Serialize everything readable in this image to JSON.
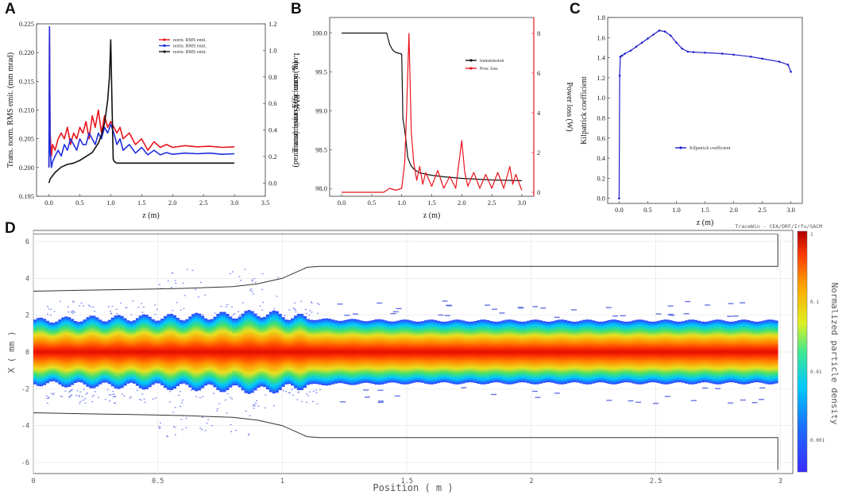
{
  "panels": {
    "A": "A",
    "B": "B",
    "C": "C",
    "D": "D"
  },
  "chart_data": [
    {
      "id": "A",
      "type": "line",
      "xlabel": "z (m)",
      "ylabel_left": "Trans. norm. RMS emit. (mm mrad)",
      "ylabel_right": "Long. norm. RMS emit. (mm mrad)",
      "xlim": [
        -0.2,
        3.5
      ],
      "ylim_left": [
        0.195,
        0.225
      ],
      "ylim_right": [
        -0.1,
        1.2
      ],
      "xticks": [
        "0.0",
        "0.5",
        "1.0",
        "1.5",
        "2.0",
        "2.5",
        "3.0",
        "3.5"
      ],
      "yticks_left": [
        "0.195",
        "0.200",
        "0.205",
        "0.210",
        "0.215",
        "0.220",
        "0.225"
      ],
      "yticks_right": [
        "0.0",
        "0.2",
        "0.4",
        "0.6",
        "0.8",
        "1.0",
        "1.2"
      ],
      "legend": [
        "norm. RMS emit.",
        "norm. RMS emit.",
        "norm. RMS emit."
      ],
      "series": [
        {
          "name": "norm. RMS emit.",
          "color": "#e8141c",
          "axis": "left",
          "x": [
            0,
            0.01,
            0.02,
            0.04,
            0.06,
            0.1,
            0.15,
            0.2,
            0.25,
            0.3,
            0.35,
            0.4,
            0.45,
            0.5,
            0.55,
            0.6,
            0.65,
            0.7,
            0.75,
            0.8,
            0.85,
            0.9,
            0.95,
            1.0,
            1.05,
            1.1,
            1.15,
            1.2,
            1.3,
            1.4,
            1.5,
            1.6,
            1.7,
            1.8,
            1.9,
            2.0,
            2.2,
            2.4,
            2.6,
            2.8,
            3.0
          ],
          "values": [
            0.2,
            0.224,
            0.206,
            0.202,
            0.204,
            0.203,
            0.205,
            0.206,
            0.205,
            0.207,
            0.204,
            0.206,
            0.205,
            0.207,
            0.206,
            0.208,
            0.205,
            0.209,
            0.207,
            0.21,
            0.206,
            0.209,
            0.207,
            0.208,
            0.207,
            0.206,
            0.207,
            0.205,
            0.206,
            0.204,
            0.205,
            0.203,
            0.2045,
            0.2035,
            0.204,
            0.2035,
            0.2038,
            0.2036,
            0.2037,
            0.2035,
            0.2036
          ]
        },
        {
          "name": "norm. RMS emit.",
          "color": "#1f2fe0",
          "axis": "left",
          "x": [
            0,
            0.01,
            0.02,
            0.04,
            0.06,
            0.1,
            0.15,
            0.2,
            0.25,
            0.3,
            0.35,
            0.4,
            0.45,
            0.5,
            0.55,
            0.6,
            0.65,
            0.7,
            0.75,
            0.8,
            0.85,
            0.9,
            0.95,
            1.0,
            1.05,
            1.1,
            1.15,
            1.2,
            1.3,
            1.4,
            1.5,
            1.6,
            1.7,
            1.8,
            1.9,
            2.0,
            2.2,
            2.4,
            2.6,
            2.8,
            3.0
          ],
          "values": [
            0.2,
            0.2245,
            0.203,
            0.2,
            0.201,
            0.202,
            0.203,
            0.202,
            0.204,
            0.203,
            0.205,
            0.204,
            0.203,
            0.205,
            0.204,
            0.204,
            0.206,
            0.205,
            0.204,
            0.206,
            0.205,
            0.207,
            0.206,
            0.2075,
            0.206,
            0.204,
            0.205,
            0.203,
            0.204,
            0.2025,
            0.2035,
            0.2022,
            0.203,
            0.2022,
            0.2026,
            0.2023,
            0.2025,
            0.2024,
            0.2025,
            0.2023,
            0.2024
          ]
        },
        {
          "name": "norm. RMS emit.",
          "color": "#111111",
          "axis": "right",
          "x": [
            0,
            0.02,
            0.05,
            0.1,
            0.2,
            0.3,
            0.4,
            0.5,
            0.6,
            0.7,
            0.8,
            0.85,
            0.9,
            0.95,
            0.98,
            1.0,
            1.02,
            1.04,
            1.06,
            1.1,
            1.2,
            1.5,
            2.0,
            2.5,
            3.0
          ],
          "values": [
            0.0,
            0.03,
            0.05,
            0.08,
            0.12,
            0.14,
            0.15,
            0.17,
            0.2,
            0.23,
            0.3,
            0.36,
            0.45,
            0.62,
            0.8,
            1.08,
            0.6,
            0.18,
            0.16,
            0.15,
            0.15,
            0.15,
            0.15,
            0.15,
            0.15
          ]
        }
      ]
    },
    {
      "id": "B",
      "type": "line",
      "xlabel": "z (m)",
      "ylabel_left": "Transmission Efficiency (%)",
      "ylabel_right": "Power loss (W)",
      "xlim": [
        -0.2,
        3.2
      ],
      "ylim_left": [
        97.9,
        100.2
      ],
      "ylim_right": [
        -0.2,
        8.8
      ],
      "xticks": [
        "0.0",
        "0.5",
        "1.0",
        "1.5",
        "2.0",
        "2.5",
        "3.0"
      ],
      "yticks_left": [
        "98.0",
        "98.5",
        "99.0",
        "99.5",
        "100.0"
      ],
      "yticks_right": [
        "0",
        "2",
        "4",
        "6",
        "8"
      ],
      "legend": [
        "transmission",
        "Pow. loss"
      ],
      "series": [
        {
          "name": "transmission",
          "color": "#111111",
          "axis": "left",
          "x": [
            0,
            0.2,
            0.4,
            0.6,
            0.75,
            0.8,
            0.85,
            0.9,
            0.95,
            1.0,
            1.02,
            1.05,
            1.08,
            1.1,
            1.15,
            1.2,
            1.3,
            1.5,
            1.7,
            2.0,
            2.5,
            3.0
          ],
          "values": [
            100.0,
            100.0,
            100.0,
            100.0,
            100.0,
            99.85,
            99.78,
            99.75,
            99.74,
            99.73,
            98.9,
            98.75,
            98.55,
            98.4,
            98.3,
            98.25,
            98.2,
            98.17,
            98.15,
            98.13,
            98.11,
            98.1
          ]
        },
        {
          "name": "Pow. loss",
          "color": "#e8141c",
          "axis": "right",
          "x": [
            0,
            0.5,
            0.7,
            0.8,
            0.9,
            1.0,
            1.05,
            1.08,
            1.1,
            1.12,
            1.14,
            1.16,
            1.2,
            1.25,
            1.3,
            1.35,
            1.4,
            1.5,
            1.6,
            1.7,
            1.8,
            1.9,
            2.0,
            2.05,
            2.1,
            2.2,
            2.3,
            2.4,
            2.5,
            2.6,
            2.7,
            2.8,
            2.85,
            2.9,
            3.0
          ],
          "values": [
            0,
            0,
            0,
            0.2,
            0.1,
            0.2,
            1.5,
            4,
            6,
            8,
            5.5,
            3,
            1.5,
            0.6,
            1.3,
            0.4,
            1.0,
            0.3,
            1.1,
            0.2,
            0.8,
            0.2,
            2.6,
            1.0,
            0.3,
            1.0,
            0.2,
            0.9,
            0.2,
            1.0,
            0.2,
            1.3,
            0.4,
            0.9,
            0.1
          ]
        }
      ]
    },
    {
      "id": "C",
      "type": "line",
      "xlabel": "z (m)",
      "ylabel": "Kilpatrick coefficient",
      "xlim": [
        -0.2,
        3.2
      ],
      "ylim": [
        -0.05,
        1.8
      ],
      "xticks": [
        "0.0",
        "0.5",
        "1.0",
        "1.5",
        "2.0",
        "2.5",
        "3.0"
      ],
      "yticks": [
        "0.0",
        "0.2",
        "0.4",
        "0.6",
        "0.8",
        "1.0",
        "1.2",
        "1.4",
        "1.6",
        "1.8"
      ],
      "legend": [
        "Kilpatrick coefficient"
      ],
      "series": [
        {
          "name": "Kilpatrick coefficient",
          "color": "#2020c8",
          "x": [
            0.0,
            0.01,
            0.02,
            0.05,
            0.1,
            0.2,
            0.3,
            0.4,
            0.5,
            0.6,
            0.7,
            0.8,
            0.9,
            1.0,
            1.1,
            1.2,
            1.3,
            1.5,
            1.8,
            2.0,
            2.3,
            2.5,
            2.8,
            2.95,
            3.0
          ],
          "values": [
            0.0,
            1.22,
            1.41,
            1.42,
            1.44,
            1.47,
            1.51,
            1.55,
            1.59,
            1.63,
            1.67,
            1.66,
            1.62,
            1.55,
            1.49,
            1.46,
            1.455,
            1.45,
            1.44,
            1.43,
            1.41,
            1.39,
            1.36,
            1.33,
            1.26
          ]
        }
      ]
    },
    {
      "id": "D",
      "type": "heatmap",
      "xlabel": "Position ( m )",
      "ylabel": "X ( mm )",
      "xlim": [
        0,
        3.05
      ],
      "ylim": [
        -6.6,
        6.6
      ],
      "xticks": [
        "0",
        "0.5",
        "1",
        "1.5",
        "2",
        "2.5",
        "3"
      ],
      "yticks": [
        "6",
        "4",
        "2",
        "0",
        "-2",
        "-4",
        "-6"
      ],
      "colorbar_label": "Normalized particle density",
      "colorbar_ticks": [
        "1",
        "0.1",
        "0.01",
        "0.001"
      ],
      "watermark": "TraceWin - CEA/DRF/Irfu/SACM",
      "aperture": {
        "z": [
          0,
          0.2,
          0.4,
          0.6,
          0.8,
          0.9,
          1.0,
          1.05,
          1.1,
          1.15,
          1.2,
          2.0,
          2.95,
          2.99
        ],
        "r": [
          3.3,
          3.35,
          3.4,
          3.45,
          3.55,
          3.7,
          4.0,
          4.3,
          4.6,
          4.65,
          4.65,
          4.65,
          4.65,
          4.65
        ]
      },
      "beam_envelope": {
        "z": [
          0,
          0.2,
          0.4,
          0.6,
          0.8,
          0.9,
          1.0,
          1.1,
          1.2,
          1.5,
          2.0,
          2.5,
          3.0
        ],
        "r": [
          1.7,
          1.8,
          1.85,
          1.9,
          2.0,
          2.1,
          2.0,
          1.8,
          1.75,
          1.7,
          1.7,
          1.7,
          1.7
        ]
      }
    }
  ]
}
